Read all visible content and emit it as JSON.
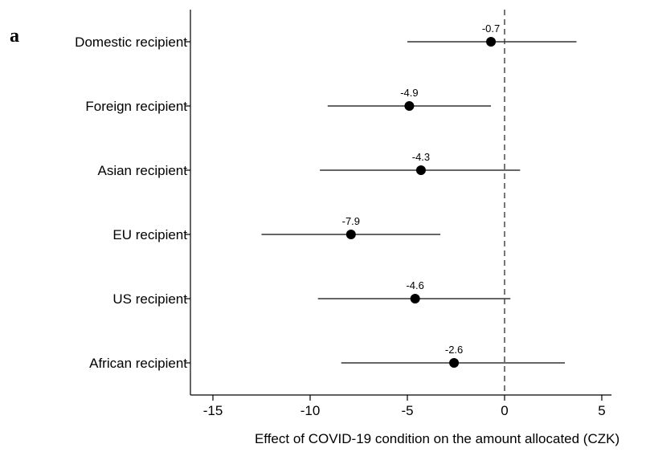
{
  "panel_label": "a",
  "chart_data": {
    "type": "dot-errorbar",
    "title": "",
    "xlabel": "Effect of COVID-19 condition on the amount allocated (CZK)",
    "ylabel": "",
    "xlim": [
      -16,
      5.5
    ],
    "xticks": [
      -15,
      -10,
      -5,
      0,
      5
    ],
    "reference_line": {
      "x": 0,
      "style": "dashed"
    },
    "grid": false,
    "categories": [
      "Domestic recipient",
      "Foreign recipient",
      "Asian recipient",
      "EU recipient",
      "US recipient",
      "African recipient"
    ],
    "estimates": [
      -0.7,
      -4.9,
      -4.3,
      -7.9,
      -4.6,
      -2.6
    ],
    "labels": [
      "-0.7",
      "-4.9",
      "-4.3",
      "-7.9",
      "-4.6",
      "-2.6"
    ],
    "ci_low": [
      -5.0,
      -9.1,
      -9.5,
      -12.5,
      -9.6,
      -8.4
    ],
    "ci_high": [
      3.7,
      -0.7,
      0.8,
      -3.3,
      0.3,
      3.1
    ]
  }
}
